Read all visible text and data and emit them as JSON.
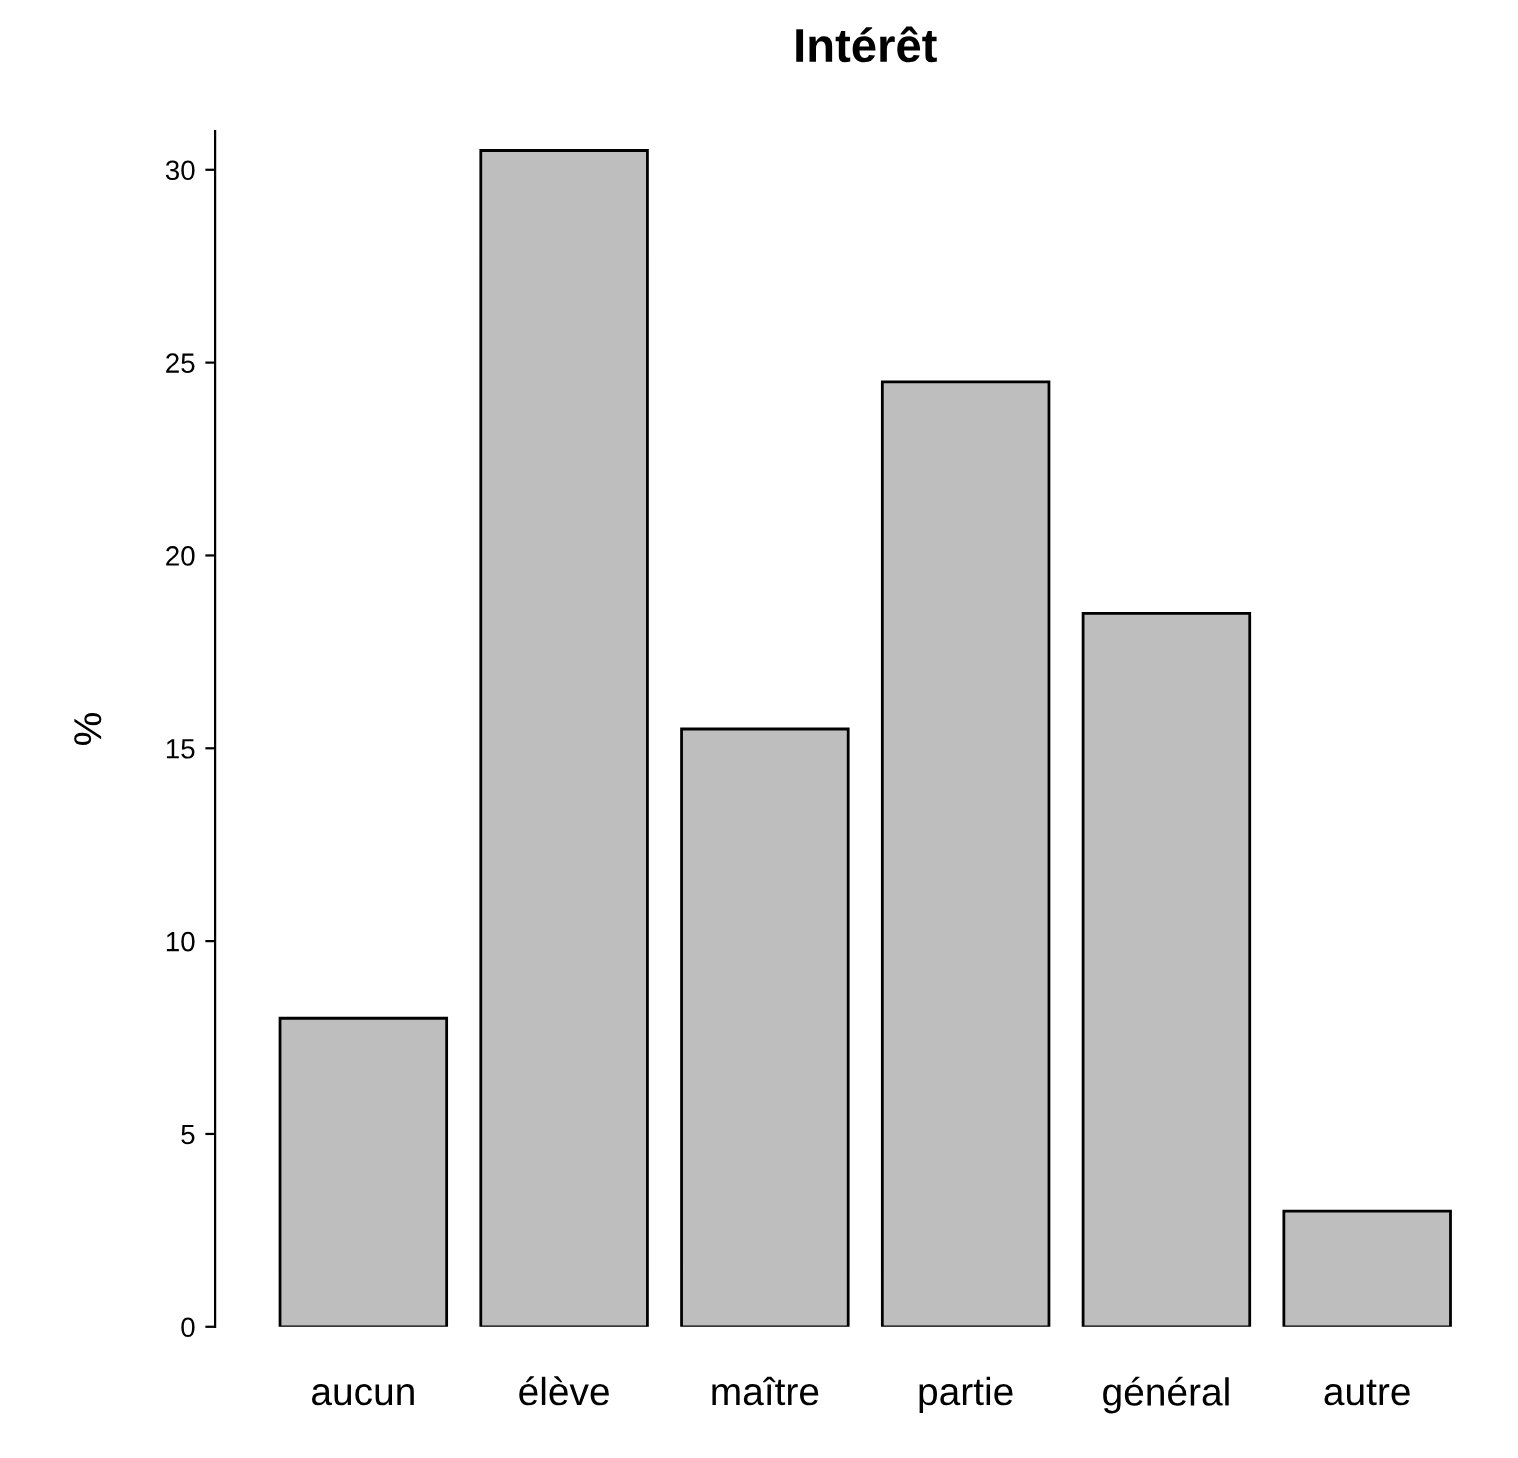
{
  "chart_data": {
    "type": "bar",
    "title": "Intérêt",
    "ylabel": "%",
    "categories": [
      "aucun",
      "élève",
      "maître",
      "partie",
      "général",
      "autre"
    ],
    "values": [
      8,
      30.5,
      15.5,
      24.5,
      18.5,
      3
    ],
    "color": "#bebebe",
    "ylim": [
      0,
      31
    ],
    "yticks": [
      0,
      5,
      10,
      15,
      20,
      25,
      30
    ],
    "grid": false,
    "legend": false
  }
}
